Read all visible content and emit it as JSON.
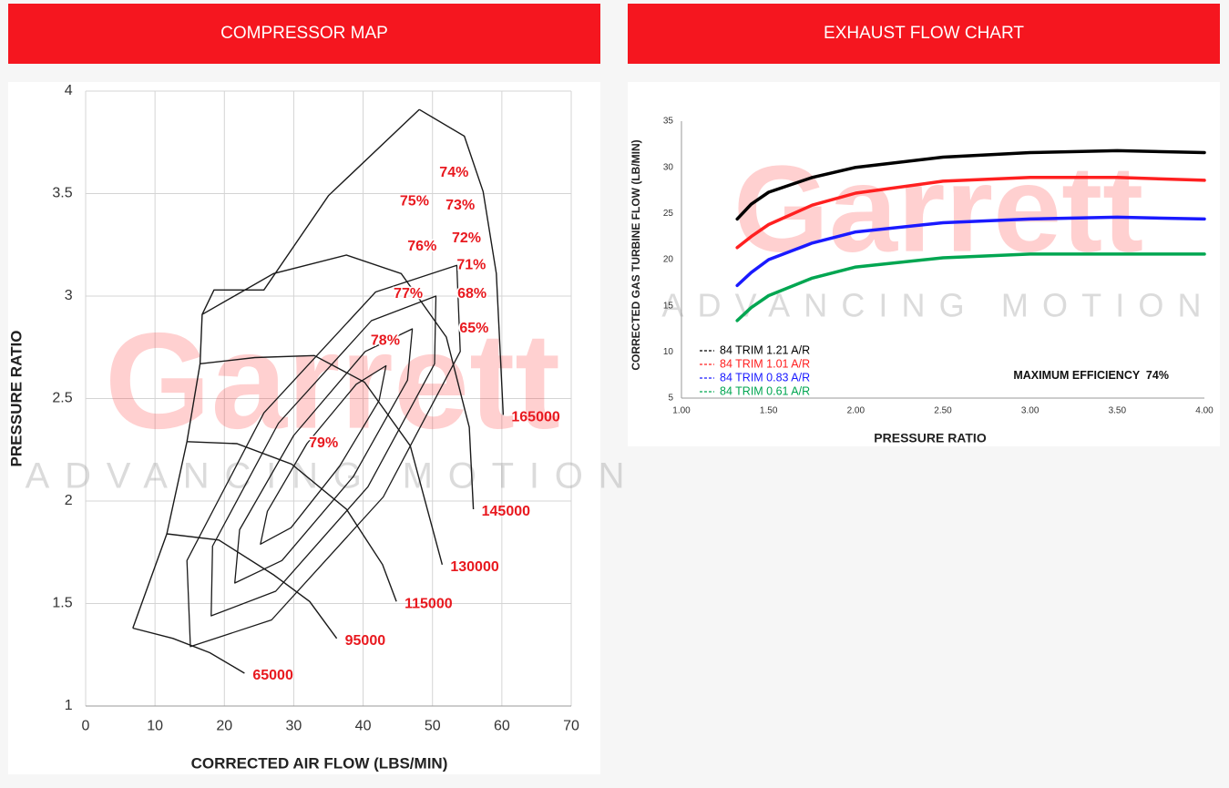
{
  "watermark": {
    "brand": "Garrett",
    "tagline": "ADVANCING MOTION"
  },
  "chart_data": [
    {
      "type": "contour",
      "title": "COMPRESSOR MAP",
      "xlabel": "CORRECTED AIR FLOW (LBS/MIN)",
      "ylabel": "PRESSURE RATIO",
      "xlim": [
        0,
        70
      ],
      "ylim": [
        1,
        4
      ],
      "xticks": [
        0,
        10,
        20,
        30,
        40,
        50,
        60,
        70
      ],
      "yticks": [
        1,
        1.5,
        2,
        2.5,
        3,
        3.5,
        4
      ],
      "grid": true,
      "line_color": "#1a1a1a",
      "label_color": "#e8191f",
      "surge_line": {
        "x": [
          6.8,
          11.7,
          14.6,
          16.5,
          16.8,
          18.5,
          25.7,
          35.0,
          48.1
        ],
        "y": [
          1.38,
          1.84,
          2.29,
          2.67,
          2.91,
          3.03,
          3.03,
          3.49,
          3.91
        ]
      },
      "speed_lines": [
        {
          "name": "65000",
          "x": [
            6.8,
            12.6,
            17.9,
            22.9
          ],
          "y": [
            1.38,
            1.33,
            1.26,
            1.16
          ]
        },
        {
          "name": "95000",
          "x": [
            11.7,
            19.2,
            27.1,
            32.3,
            36.2
          ],
          "y": [
            1.84,
            1.81,
            1.64,
            1.51,
            1.33
          ]
        },
        {
          "name": "115000",
          "x": [
            14.6,
            21.8,
            29.7,
            37.6,
            42.8,
            44.8
          ],
          "y": [
            2.29,
            2.28,
            2.18,
            1.96,
            1.69,
            1.51
          ]
        },
        {
          "name": "130000",
          "x": [
            16.5,
            24.4,
            32.97,
            40.2,
            46.8,
            51.4
          ],
          "y": [
            2.67,
            2.7,
            2.71,
            2.58,
            2.27,
            1.69
          ]
        },
        {
          "name": "145000",
          "x": [
            16.8,
            27.1,
            37.6,
            45.5,
            52.0,
            55.3,
            55.9
          ],
          "y": [
            2.91,
            3.11,
            3.2,
            3.11,
            2.8,
            2.36,
            1.96
          ]
        },
        {
          "name": "165000",
          "x": [
            48.1,
            54.6,
            57.3,
            59.2,
            60.2
          ],
          "y": [
            3.91,
            3.78,
            3.51,
            3.11,
            2.42
          ]
        }
      ],
      "efficiency_islands": [
        {
          "x": [
            43.3,
            42.3,
            36.6,
            29.6,
            25.2,
            26.2,
            31.9,
            39.0
          ],
          "y": [
            2.66,
            2.49,
            2.17,
            1.87,
            1.79,
            1.95,
            2.28,
            2.57
          ]
        },
        {
          "x": [
            47.1,
            46.4,
            38.6,
            28.3,
            21.5,
            22.2,
            30.0,
            40.3
          ],
          "y": [
            2.84,
            2.59,
            2.12,
            1.71,
            1.6,
            1.86,
            2.32,
            2.73
          ]
        },
        {
          "x": [
            50.5,
            50.3,
            40.7,
            27.4,
            18.1,
            18.3,
            27.8,
            41.2
          ],
          "y": [
            3.0,
            2.67,
            2.07,
            1.56,
            1.44,
            1.78,
            2.38,
            2.88
          ]
        },
        {
          "x": [
            53.5,
            54.0,
            42.9,
            26.8,
            15.1,
            14.6,
            25.7,
            41.8
          ],
          "y": [
            3.15,
            2.73,
            2.02,
            1.42,
            1.29,
            1.71,
            2.43,
            3.02
          ]
        }
      ],
      "annotations": [
        {
          "text": "74%",
          "x": 53.1,
          "y": 3.6
        },
        {
          "text": "75%",
          "x": 47.4,
          "y": 3.46
        },
        {
          "text": "73%",
          "x": 54.0,
          "y": 3.44
        },
        {
          "text": "76%",
          "x": 48.5,
          "y": 3.24
        },
        {
          "text": "72%",
          "x": 54.9,
          "y": 3.28
        },
        {
          "text": "71%",
          "x": 55.6,
          "y": 3.15
        },
        {
          "text": "77%",
          "x": 46.5,
          "y": 3.01
        },
        {
          "text": "68%",
          "x": 55.7,
          "y": 3.01
        },
        {
          "text": "65%",
          "x": 56.0,
          "y": 2.84
        },
        {
          "text": "78%",
          "x": 43.2,
          "y": 2.78
        },
        {
          "text": "79%",
          "x": 34.3,
          "y": 2.28
        }
      ]
    },
    {
      "type": "line",
      "title": "EXHAUST FLOW CHART",
      "xlabel": "PRESSURE RATIO",
      "ylabel": "CORRECTED GAS TURBINE FLOW (LB/MIN)",
      "xlim": [
        1,
        4
      ],
      "ylim": [
        5,
        35
      ],
      "xticks": [
        {
          "value": 1,
          "label": "1.00"
        },
        {
          "value": 1.5,
          "label": "1.50"
        },
        {
          "value": 2,
          "label": "2.00"
        },
        {
          "value": 2.5,
          "label": "2.50"
        },
        {
          "value": 3,
          "label": "3.00"
        },
        {
          "value": 3.5,
          "label": "3.50"
        },
        {
          "value": 4,
          "label": "4.00"
        }
      ],
      "yticks": [
        5,
        10,
        15,
        20,
        25,
        30,
        35
      ],
      "grid": false,
      "legend": "lower left",
      "x": [
        1.32,
        1.4,
        1.5,
        1.75,
        2,
        2.5,
        3,
        3.5,
        4
      ],
      "series": [
        {
          "name": "84 TRIM 1.21 A/R",
          "color": "#000000",
          "values": [
            24.4,
            26.0,
            27.3,
            28.9,
            30.0,
            31.1,
            31.6,
            31.8,
            31.6
          ]
        },
        {
          "name": "84 TRIM 1.01 A/R",
          "color": "#ff2020",
          "values": [
            21.3,
            22.5,
            23.8,
            25.9,
            27.2,
            28.5,
            28.9,
            28.9,
            28.6
          ]
        },
        {
          "name": "84 TRIM 0.83 A/R",
          "color": "#1a1aff",
          "values": [
            17.2,
            18.6,
            20.0,
            21.8,
            23.0,
            24.0,
            24.4,
            24.6,
            24.4
          ]
        },
        {
          "name": "84 TRIM 0.61 A/R",
          "color": "#00a651",
          "values": [
            13.4,
            14.8,
            16.1,
            18.0,
            19.2,
            20.2,
            20.6,
            20.6,
            20.6
          ]
        }
      ],
      "annotations": [
        {
          "text": "MAXIMUM EFFICIENCY  74%",
          "x": 3.35,
          "y": 7.4
        }
      ]
    }
  ]
}
